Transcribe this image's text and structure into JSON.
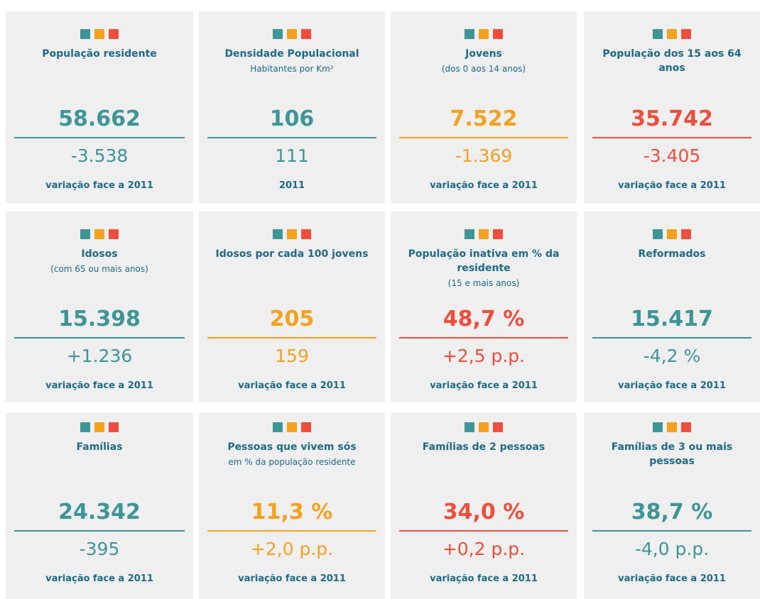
{
  "cards": [
    {
      "title": "População residente",
      "value": "58.662",
      "change": "-3.538",
      "note": "variação face a 2011",
      "color": "#3d9597"
    },
    {
      "title": "Densidade Populacional",
      "subtitle": "Habitantes por Km²",
      "value": "106",
      "change": "111",
      "note": "2011",
      "color": "#3d9597"
    },
    {
      "title": "Jovens",
      "subtitle": "(dos 0 aos 14 anos)",
      "value": "7.522",
      "change": "-1.369",
      "note": "variação face a 2011",
      "color": "#f5a11c"
    },
    {
      "title": "População dos 15 aos 64 anos",
      "value": "35.742",
      "change": "-3.405",
      "note": "variação face a 2011",
      "color": "#ef4d3d"
    },
    {
      "title": "Idosos",
      "subtitle": "(com 65 ou mais anos)",
      "value": "15.398",
      "change": "+1.236",
      "note": "variação face a 2011",
      "color": "#3d9597"
    },
    {
      "title": "Idosos por cada 100 jovens",
      "value": "205",
      "change": "159",
      "note": "variação face a 2011",
      "color": "#f5a11c"
    },
    {
      "title": "População inativa em % da residente",
      "subtitle": "(15 e mais anos)",
      "value": "48,7 %",
      "change": "+2,5 p.p.",
      "note": "variação face a 2011",
      "color": "#ef4d3d"
    },
    {
      "title": "Reformados",
      "value": "15.417",
      "change": "-4,2 %",
      "note": "variação face a 2011",
      "color": "#3d9597"
    },
    {
      "title": "Famílias",
      "value": "24.342",
      "change": "-395",
      "note": "variação face a 2011",
      "color": "#3d9597"
    },
    {
      "title": "Pessoas que vivem sós",
      "subtitle": "em % da população residente",
      "value": "11,3 %",
      "change": "+2,0 p.p.",
      "note": "variação face a 2011",
      "color": "#f5a11c"
    },
    {
      "title": "Famílias de 2 pessoas",
      "value": "34,0 %",
      "change": "+0,2 p.p.",
      "note": "variação face a 2011",
      "color": "#ef4d3d"
    },
    {
      "title": "Famílias de 3 ou mais pessoas",
      "value": "38,7 %",
      "change": "-4,0 p.p.",
      "note": "variação face a 2011",
      "color": "#3d9597"
    }
  ]
}
